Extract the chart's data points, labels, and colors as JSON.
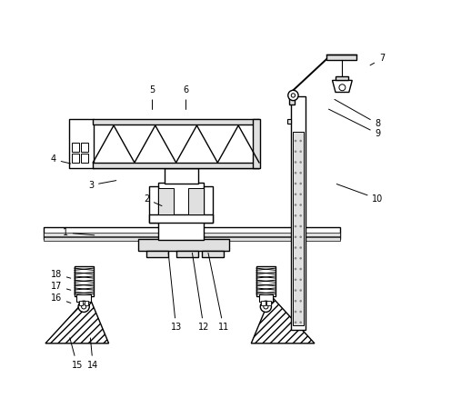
{
  "bg_color": "#ffffff",
  "line_color": "#000000",
  "gray_fill": "#c8c8c8",
  "light_gray": "#e0e0e0",
  "lw": 1.0,
  "labels_data": [
    [
      1,
      0.095,
      0.415,
      0.175,
      0.408
    ],
    [
      2,
      0.3,
      0.5,
      0.345,
      0.48
    ],
    [
      3,
      0.16,
      0.535,
      0.23,
      0.548
    ],
    [
      4,
      0.065,
      0.6,
      0.115,
      0.588
    ],
    [
      5,
      0.315,
      0.775,
      0.315,
      0.72
    ],
    [
      6,
      0.4,
      0.775,
      0.4,
      0.72
    ],
    [
      7,
      0.895,
      0.855,
      0.86,
      0.835
    ],
    [
      8,
      0.885,
      0.69,
      0.77,
      0.755
    ],
    [
      9,
      0.885,
      0.665,
      0.755,
      0.73
    ],
    [
      10,
      0.885,
      0.5,
      0.775,
      0.54
    ],
    [
      11,
      0.495,
      0.175,
      0.455,
      0.37
    ],
    [
      12,
      0.445,
      0.175,
      0.415,
      0.37
    ],
    [
      13,
      0.375,
      0.175,
      0.355,
      0.37
    ],
    [
      14,
      0.165,
      0.08,
      0.158,
      0.155
    ],
    [
      15,
      0.125,
      0.08,
      0.105,
      0.155
    ],
    [
      16,
      0.072,
      0.25,
      0.115,
      0.235
    ],
    [
      17,
      0.072,
      0.28,
      0.115,
      0.268
    ],
    [
      18,
      0.072,
      0.31,
      0.115,
      0.298
    ]
  ]
}
